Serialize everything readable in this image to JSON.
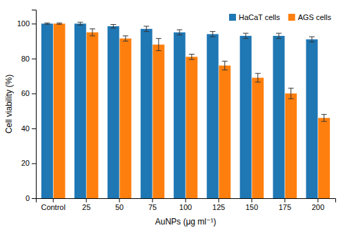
{
  "chart_data": {
    "type": "bar",
    "categories": [
      "Control",
      "25",
      "50",
      "75",
      "100",
      "125",
      "150",
      "175",
      "200"
    ],
    "series": [
      {
        "name": "HaCaT cells",
        "values": [
          100,
          100,
          98.5,
          97,
          95,
          94,
          93,
          93,
          91
        ],
        "errors": [
          0.4,
          0.8,
          1.0,
          1.5,
          1.5,
          1.5,
          1.5,
          1.5,
          1.5
        ]
      },
      {
        "name": "AGS cells",
        "values": [
          100,
          95,
          91.5,
          88,
          81,
          76,
          69,
          60,
          46
        ],
        "errors": [
          0.4,
          2.0,
          1.5,
          3.5,
          1.5,
          2.5,
          2.5,
          3.0,
          2.0
        ]
      }
    ],
    "xlabel": "AuNPs (μg ml⁻¹)",
    "ylabel": "Cell viability (%)",
    "ylim": [
      0,
      108
    ],
    "yticks": [
      0,
      20,
      40,
      60,
      80,
      100
    ],
    "legend": "upper right"
  }
}
